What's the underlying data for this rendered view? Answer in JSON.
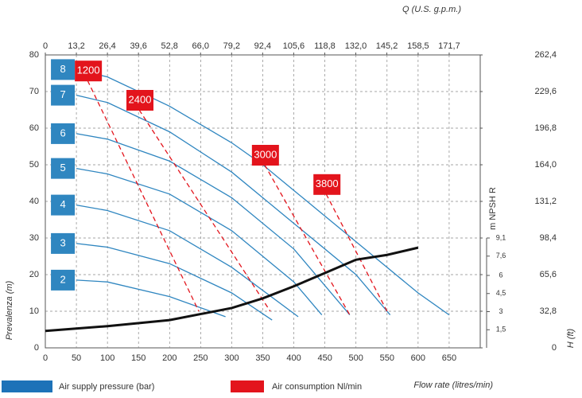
{
  "chart_data": {
    "type": "line",
    "x_label": "Flow rate (litres/min)",
    "y_label": "Prevalenza (m)",
    "x2_label": "Q (U.S. g.p.m.)",
    "y2_label": "H (ft)",
    "y3_label": "m NPSH R",
    "xlim": [
      0,
      700
    ],
    "xticks": [
      0,
      50,
      100,
      150,
      200,
      250,
      300,
      350,
      400,
      450,
      500,
      550,
      600,
      650
    ],
    "ylim": [
      0,
      80
    ],
    "yticks": [
      0,
      10,
      20,
      30,
      40,
      50,
      60,
      70,
      80
    ],
    "x2lim": [
      0,
      184.9
    ],
    "x2ticks": [
      0,
      {
        "value": 13.2,
        "label": "13,2"
      },
      {
        "value": 26.4,
        "label": "26,4"
      },
      {
        "value": 39.6,
        "label": "39,6"
      },
      {
        "value": 52.8,
        "label": "52,8"
      },
      {
        "value": 66.0,
        "label": "66,0"
      },
      {
        "value": 79.2,
        "label": "79,2"
      },
      {
        "value": 92.4,
        "label": "92,4"
      },
      {
        "value": 105.6,
        "label": "105,6"
      },
      {
        "value": 118.8,
        "label": "118,8"
      },
      {
        "value": 132.0,
        "label": "132,0"
      },
      {
        "value": 145.2,
        "label": "145,2"
      },
      {
        "value": 158.5,
        "label": "158,5"
      },
      {
        "value": 171.7,
        "label": "171,7"
      }
    ],
    "y2lim": [
      0,
      262.4
    ],
    "y2ticks": [
      0,
      {
        "value": 32.8,
        "label": "32,8"
      },
      {
        "value": 65.6,
        "label": "65,6"
      },
      {
        "value": 98.4,
        "label": "98,4"
      },
      {
        "value": 131.2,
        "label": "131,2"
      },
      {
        "value": 164.0,
        "label": "164,0"
      },
      {
        "value": 196.8,
        "label": "196,8"
      },
      {
        "value": 229.6,
        "label": "229,6"
      },
      {
        "value": 262.4,
        "label": "262,4"
      }
    ],
    "y3lim": [
      0,
      9.1
    ],
    "y3ticks": [
      {
        "value": 1.5,
        "label": "1,5"
      },
      3,
      {
        "value": 4.5,
        "label": "4,5"
      },
      6,
      {
        "value": 7.6,
        "label": "7,6"
      },
      {
        "value": 9.1,
        "label": "9,1"
      }
    ],
    "grid": true,
    "pressure_curves": [
      {
        "name": "2",
        "color": "#2f86c0",
        "x": [
          50,
          100,
          200,
          290
        ],
        "values": [
          18.5,
          18,
          14,
          8.5
        ]
      },
      {
        "name": "3",
        "color": "#2f86c0",
        "x": [
          50,
          100,
          200,
          300,
          365
        ],
        "values": [
          28.5,
          27.5,
          23,
          15,
          7.6
        ]
      },
      {
        "name": "4",
        "color": "#2f86c0",
        "x": [
          50,
          100,
          200,
          300,
          407
        ],
        "values": [
          39,
          37.5,
          32,
          22,
          8.5
        ]
      },
      {
        "name": "5",
        "color": "#2f86c0",
        "x": [
          50,
          100,
          200,
          300,
          400,
          445
        ],
        "values": [
          49,
          47.5,
          42,
          32,
          18,
          9
        ]
      },
      {
        "name": "6",
        "color": "#2f86c0",
        "x": [
          50,
          100,
          200,
          300,
          400,
          490
        ],
        "values": [
          58.5,
          57,
          51,
          41,
          27,
          9
        ]
      },
      {
        "name": "7",
        "color": "#2f86c0",
        "x": [
          50,
          100,
          200,
          300,
          400,
          500,
          555
        ],
        "values": [
          69,
          67,
          59,
          48,
          34,
          20,
          9
        ]
      },
      {
        "name": "8",
        "color": "#2f86c0",
        "x": [
          50,
          100,
          200,
          300,
          350,
          400,
          500,
          600,
          650
        ],
        "values": [
          76,
          74,
          66,
          56,
          50,
          43,
          29,
          15,
          9
        ]
      }
    ],
    "air_consumption": [
      {
        "name": "1200",
        "color": "#e3141c",
        "x": [
          68,
          247
        ],
        "values": [
          73,
          10
        ]
      },
      {
        "name": "2400",
        "color": "#e3141c",
        "x": [
          151,
          362
        ],
        "values": [
          65,
          10
        ]
      },
      {
        "name": "3000",
        "color": "#e3141c",
        "x": [
          353,
          490
        ],
        "values": [
          50,
          9
        ]
      },
      {
        "name": "3800",
        "color": "#e3141c",
        "x": [
          452,
          550
        ],
        "values": [
          42,
          10
        ]
      }
    ],
    "npsh": {
      "color": "#111111",
      "axis": "y3",
      "x": [
        0,
        100,
        200,
        300,
        350,
        400,
        450,
        500,
        550,
        600
      ],
      "values": [
        1.4,
        1.8,
        2.3,
        3.3,
        4.1,
        5.1,
        6.2,
        7.3,
        7.7,
        8.3
      ]
    },
    "legend": [
      {
        "name": "Air supply pressure (bar)",
        "color": "#1d72b8"
      },
      {
        "name": "Air consumption Nl/min",
        "color": "#e3141c"
      }
    ]
  }
}
